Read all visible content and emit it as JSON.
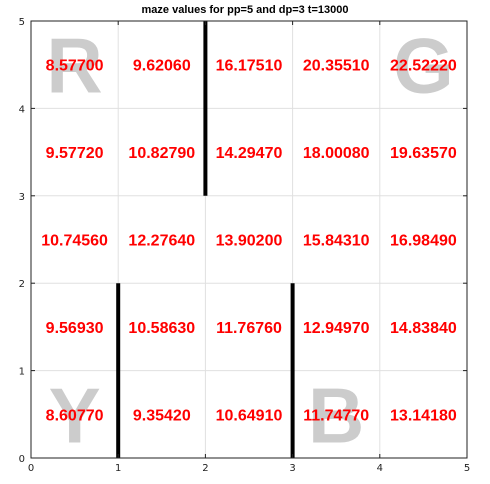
{
  "chart_data": {
    "type": "heatmap",
    "title": "maze values for pp=5 and dp=3 t=13000",
    "xlim": [
      0,
      5
    ],
    "ylim": [
      0,
      5
    ],
    "x_ticks": [
      "0",
      "1",
      "2",
      "3",
      "4",
      "5"
    ],
    "y_ticks": [
      "0",
      "1",
      "2",
      "3",
      "4",
      "5"
    ],
    "grid": true,
    "rows_top_to_bottom": [
      [
        "8.57700",
        "9.62060",
        "16.17510",
        "20.35510",
        "22.52220"
      ],
      [
        "9.57720",
        "10.82790",
        "14.29470",
        "18.00080",
        "19.63570"
      ],
      [
        "10.74560",
        "12.27640",
        "13.90200",
        "15.84310",
        "16.98490"
      ],
      [
        "9.56930",
        "10.58630",
        "11.76760",
        "12.94970",
        "14.83840"
      ],
      [
        "8.60770",
        "9.35420",
        "10.64910",
        "11.74770",
        "13.14180"
      ]
    ],
    "corner_labels": [
      {
        "text": "R",
        "cell": [
          0,
          4
        ]
      },
      {
        "text": "G",
        "cell": [
          4,
          4
        ]
      },
      {
        "text": "Y",
        "cell": [
          0,
          0
        ]
      },
      {
        "text": "B",
        "cell": [
          3,
          0
        ]
      }
    ],
    "walls": [
      {
        "x": 2,
        "y_from": 3,
        "y_to": 5
      },
      {
        "x": 1,
        "y_from": 0,
        "y_to": 2
      },
      {
        "x": 3,
        "y_from": 0,
        "y_to": 2
      }
    ],
    "colors": {
      "values": "#ff0000",
      "corner_letters": "#cccccc",
      "walls": "#000000",
      "grid": "#e0e0e0"
    }
  }
}
